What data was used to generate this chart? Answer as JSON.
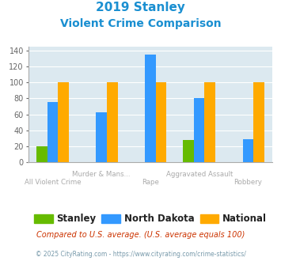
{
  "title_line1": "2019 Stanley",
  "title_line2": "Violent Crime Comparison",
  "categories": [
    "All Violent Crime",
    "Murder & Mans...",
    "Rape",
    "Aggravated Assault",
    "Robbery"
  ],
  "cat_top": [
    "",
    "Murder & Mans...",
    "",
    "Aggravated Assault",
    ""
  ],
  "cat_bot": [
    "All Violent Crime",
    "",
    "Rape",
    "",
    "Robbery"
  ],
  "stanley": [
    20,
    0,
    0,
    28,
    0
  ],
  "north_dakota": [
    75,
    63,
    135,
    80,
    29
  ],
  "national": [
    100,
    100,
    100,
    100,
    100
  ],
  "stanley_color": "#66bb00",
  "north_dakota_color": "#3399ff",
  "national_color": "#ffaa00",
  "ylim": [
    0,
    145
  ],
  "yticks": [
    0,
    20,
    40,
    60,
    80,
    100,
    120,
    140
  ],
  "bg_color": "#dce9f0",
  "title_color": "#1a8fd1",
  "label_color": "#aaaaaa",
  "footer_text": "Compared to U.S. average. (U.S. average equals 100)",
  "copyright_text": "© 2025 CityRating.com - https://www.cityrating.com/crime-statistics/",
  "legend_labels": [
    "Stanley",
    "North Dakota",
    "National"
  ],
  "bar_width": 0.22
}
